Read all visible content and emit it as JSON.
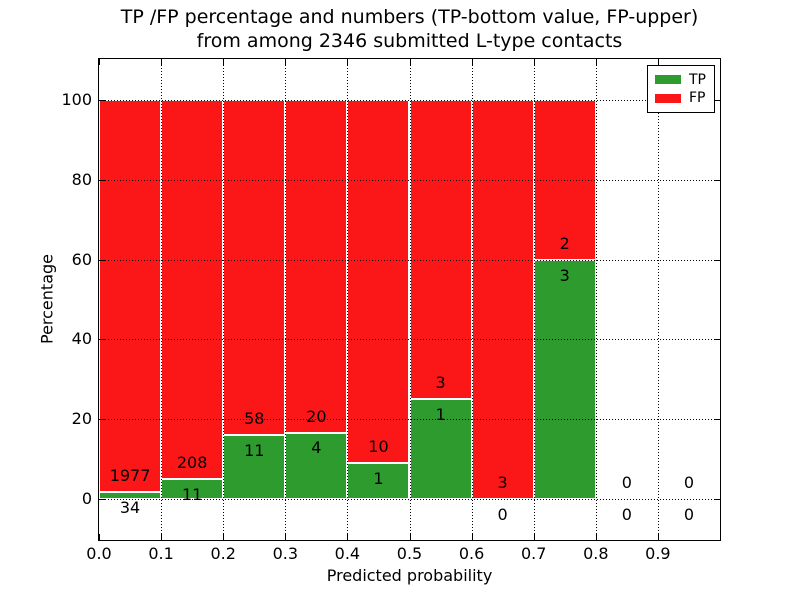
{
  "title": {
    "line1": "TP /FP percentage and numbers (TP-bottom value, FP-upper)",
    "line2": "from among 2346 submitted L-type contacts"
  },
  "chart_data": {
    "type": "bar",
    "stacked": true,
    "title": "TP /FP percentage and numbers (TP-bottom value, FP-upper) from among 2346 submitted L-type contacts",
    "xlabel": "Predicted probability",
    "ylabel": "Percentage",
    "total_contacts": 2346,
    "xlim": [
      0.0,
      1.0
    ],
    "ylim": [
      -10,
      110
    ],
    "xtick_values": [
      0.0,
      0.1,
      0.2,
      0.3,
      0.4,
      0.5,
      0.6,
      0.7,
      0.8,
      0.9
    ],
    "xtick_labels": [
      "0.0",
      "0.1",
      "0.2",
      "0.3",
      "0.4",
      "0.5",
      "0.6",
      "0.7",
      "0.8",
      "0.9"
    ],
    "ytick_values": [
      0,
      20,
      40,
      60,
      80,
      100
    ],
    "ytick_labels": [
      "0",
      "20",
      "40",
      "60",
      "80",
      "100"
    ],
    "grid": {
      "style": "dotted",
      "color": "#000000",
      "above_bars": true
    },
    "legend": {
      "position": "upper-right",
      "entries": [
        {
          "label": "TP",
          "color": "#2e9b2e"
        },
        {
          "label": "FP",
          "color": "#fb1717"
        }
      ]
    },
    "series": [
      {
        "name": "TP",
        "color": "#2e9b2e",
        "stack_order": "bottom"
      },
      {
        "name": "FP",
        "color": "#fb1717",
        "stack_order": "top"
      }
    ],
    "annotation_rule": "FP count shown just above green/red boundary, TP count just below it; bars are percentage-normalized per bin",
    "bins": [
      {
        "range": [
          0.0,
          0.1
        ],
        "tp": 34,
        "fp": 1977
      },
      {
        "range": [
          0.1,
          0.2
        ],
        "tp": 11,
        "fp": 208
      },
      {
        "range": [
          0.2,
          0.3
        ],
        "tp": 11,
        "fp": 58
      },
      {
        "range": [
          0.3,
          0.4
        ],
        "tp": 4,
        "fp": 20
      },
      {
        "range": [
          0.4,
          0.5
        ],
        "tp": 1,
        "fp": 10
      },
      {
        "range": [
          0.5,
          0.6
        ],
        "tp": 1,
        "fp": 3
      },
      {
        "range": [
          0.6,
          0.7
        ],
        "tp": 0,
        "fp": 3
      },
      {
        "range": [
          0.7,
          0.8
        ],
        "tp": 3,
        "fp": 2
      },
      {
        "range": [
          0.8,
          0.9
        ],
        "tp": 0,
        "fp": 0
      },
      {
        "range": [
          0.9,
          1.0
        ],
        "tp": 0,
        "fp": 0
      }
    ]
  }
}
